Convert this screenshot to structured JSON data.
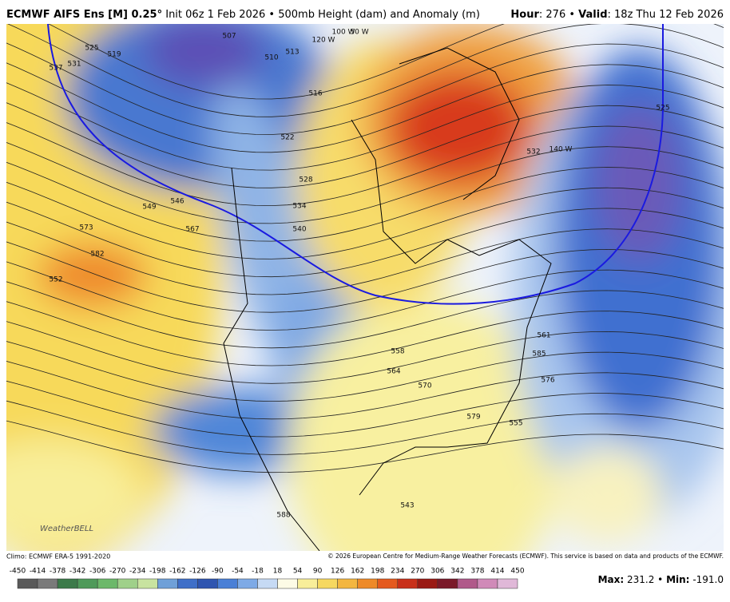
{
  "header": {
    "model": "ECMWF AIFS Ens [M] 0.25°",
    "description": "Init 06z 1 Feb 2026 • 500mb Height (dam) and Anomaly (m)",
    "hour_label": "Hour",
    "hour_value": ": 276 •",
    "valid_label": "Valid",
    "valid_value": ": 18z Thu 12 Feb 2026"
  },
  "map": {
    "contour_labels": [
      "537",
      "531",
      "525",
      "519",
      "507",
      "510",
      "513",
      "516",
      "522",
      "528",
      "534",
      "540",
      "546",
      "549",
      "567",
      "573",
      "582",
      "552",
      "558",
      "564",
      "570",
      "576",
      "579",
      "555",
      "561",
      "585",
      "588",
      "543",
      "525",
      "532",
      "140 W",
      "120 W",
      "100 W",
      "50 W"
    ],
    "logo": "WeatherBELL"
  },
  "footer": {
    "climo": "Climo: ECMWF ERA-5 1991-2020",
    "copyright": "© 2026 European Centre for Medium-Range Weather Forecasts (ECMWF). This service is based on data and products of the ECMWF.",
    "colorbar": {
      "ticks": [
        -450,
        -414,
        -378,
        -342,
        -306,
        -270,
        -234,
        -198,
        -162,
        -126,
        -90,
        -54,
        -18,
        18,
        54,
        90,
        126,
        162,
        198,
        234,
        270,
        306,
        342,
        378,
        414,
        450
      ],
      "colors": [
        "#5a5a5a",
        "#7a7a7a",
        "#3c7a4a",
        "#4f9a5a",
        "#6cb86a",
        "#9fd08a",
        "#c8e3a0",
        "#6fa0d8",
        "#3f6fc8",
        "#2f55b0",
        "#4a7fd6",
        "#7eaae6",
        "#c6daf4",
        "#fdfbe6",
        "#f8ee9a",
        "#f6d860",
        "#f3b640",
        "#ee8a28",
        "#e45a1e",
        "#c8301a",
        "#9a1a14",
        "#7a1a2a",
        "#b05a8a",
        "#d08ab8",
        "#e0b8d8"
      ]
    },
    "max_label": "Max:",
    "max_value": "231.2",
    "sep": "•",
    "min_label": "Min:",
    "min_value": "-191.0"
  }
}
